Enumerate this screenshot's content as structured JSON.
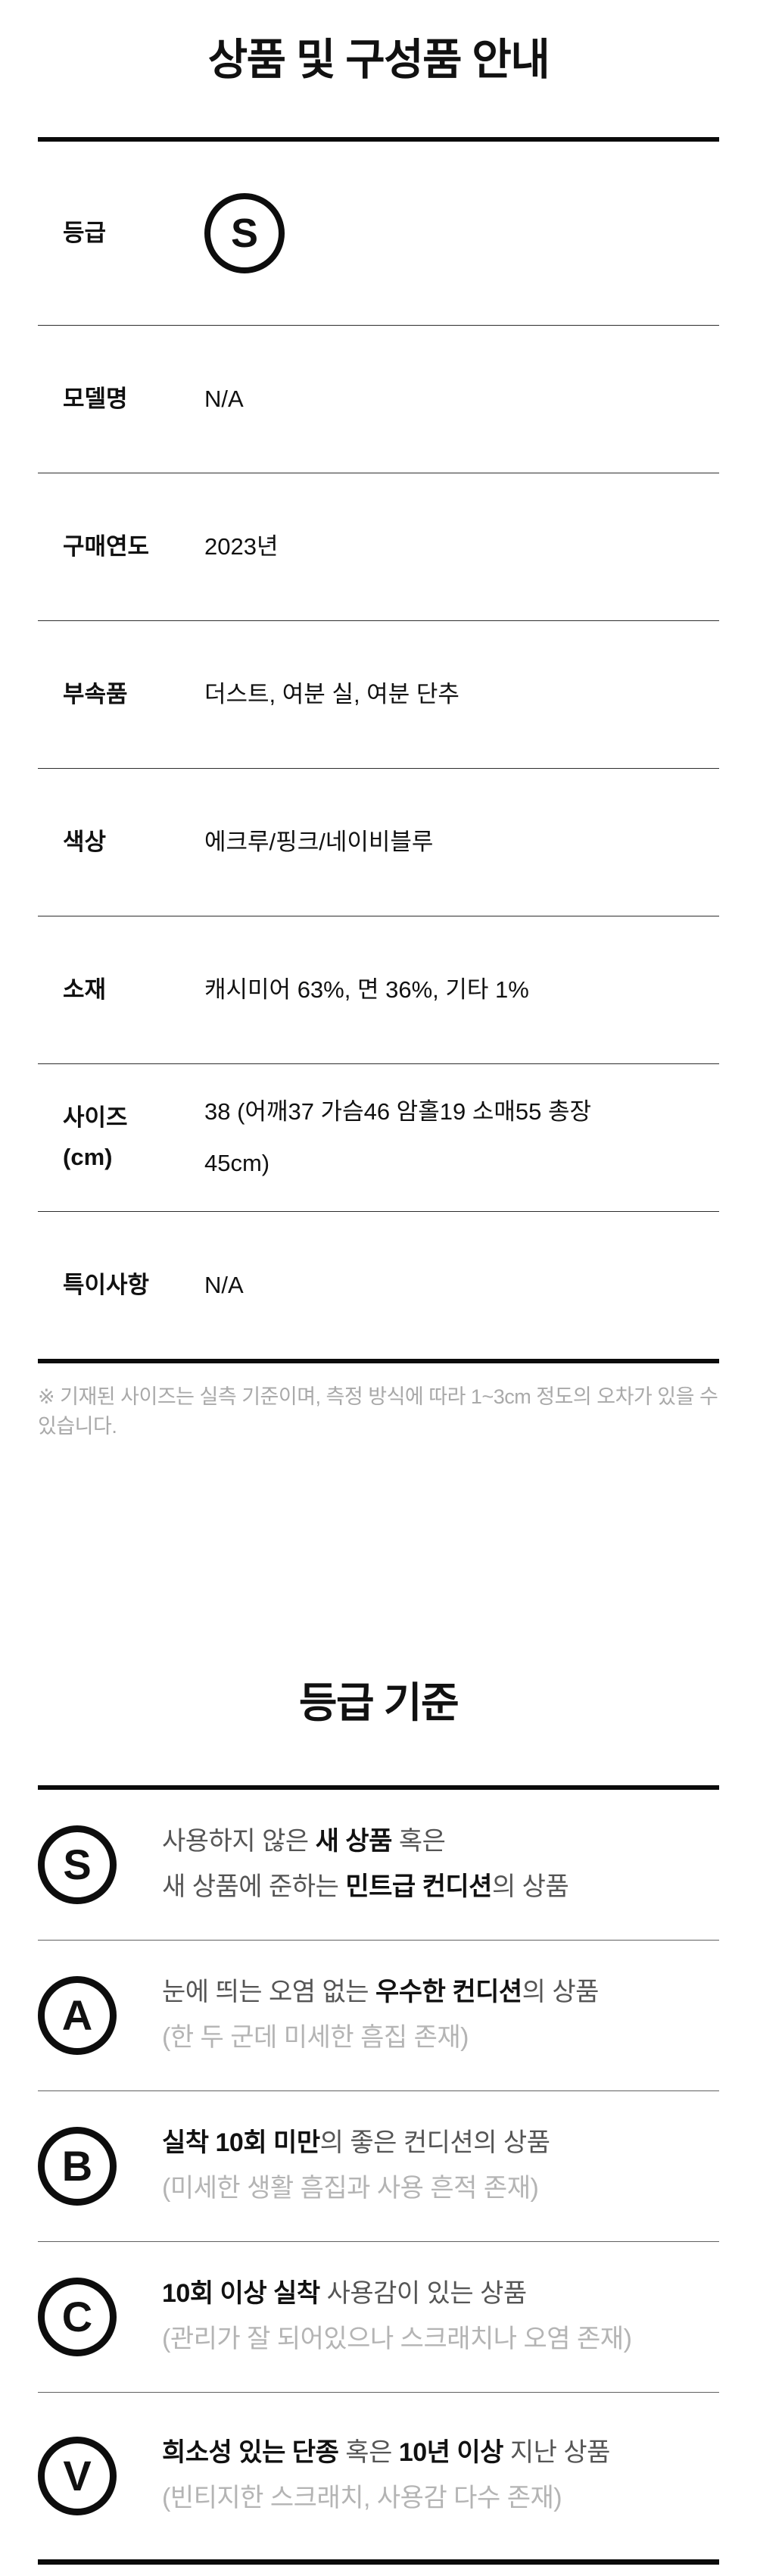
{
  "section1": {
    "title": "상품 및 구성품 안내",
    "rows": [
      {
        "label": "등급",
        "badge": "S"
      },
      {
        "label": "모델명",
        "value": "N/A"
      },
      {
        "label": "구매연도",
        "value": "2023년"
      },
      {
        "label": "부속품",
        "value": "더스트, 여분 실, 여분 단추"
      },
      {
        "label": "색상",
        "value": "에크루/핑크/네이비블루"
      },
      {
        "label": "소재",
        "value": "캐시미어 63%, 면 36%, 기타 1%"
      },
      {
        "label": "사이즈\n(cm)",
        "value": "38 (어깨37 가슴46 암홀19 소매55 총장\n45cm)"
      },
      {
        "label": "특이사항",
        "value": "N/A"
      }
    ],
    "footnote": "※ 기재된 사이즈는 실측 기준이며, 측정 방식에 따라 1~3cm 정도의 오차가 있을 수 있습니다."
  },
  "section2": {
    "title": "등급 기준",
    "grades": [
      {
        "badge": "S",
        "line1": [
          {
            "text": "사용하지 않은 ",
            "bold": false
          },
          {
            "text": "새 상품",
            "bold": true
          },
          {
            "text": " 혹은",
            "bold": false
          }
        ],
        "line2": [
          {
            "text": "새 상품에 준하는 ",
            "bold": false
          },
          {
            "text": "민트급 컨디션",
            "bold": true
          },
          {
            "text": "의 상품",
            "bold": false
          }
        ]
      },
      {
        "badge": "A",
        "line1": [
          {
            "text": "눈에 띄는 오염 없는 ",
            "bold": false
          },
          {
            "text": "우수한 컨디션",
            "bold": true
          },
          {
            "text": "의 상품",
            "bold": false
          }
        ],
        "sub": "(한 두 군데 미세한 흠집 존재)"
      },
      {
        "badge": "B",
        "line1": [
          {
            "text": "실착 10회 미만",
            "bold": true
          },
          {
            "text": "의 좋은 컨디션의 상품",
            "bold": false
          }
        ],
        "sub": "(미세한 생활 흠집과 사용 흔적 존재)"
      },
      {
        "badge": "C",
        "line1": [
          {
            "text": "10회 이상 실착",
            "bold": true
          },
          {
            "text": " 사용감이 있는 상품",
            "bold": false
          }
        ],
        "sub": "(관리가 잘 되어있으나 스크래치나 오염 존재)"
      },
      {
        "badge": "V",
        "line1": [
          {
            "text": "희소성 있는 단종",
            "bold": true
          },
          {
            "text": " 혹은 ",
            "bold": false
          },
          {
            "text": "10년 이상",
            "bold": true
          },
          {
            "text": " 지난 상품",
            "bold": false
          }
        ],
        "sub": "(빈티지한 스크래치, 사용감 다수 존재)"
      }
    ]
  },
  "colors": {
    "text": "#111111",
    "grade_text": "#555555",
    "grade_sub": "#b4b4b4",
    "footnote": "#a9a9a9",
    "border": "#0b0b0b"
  }
}
